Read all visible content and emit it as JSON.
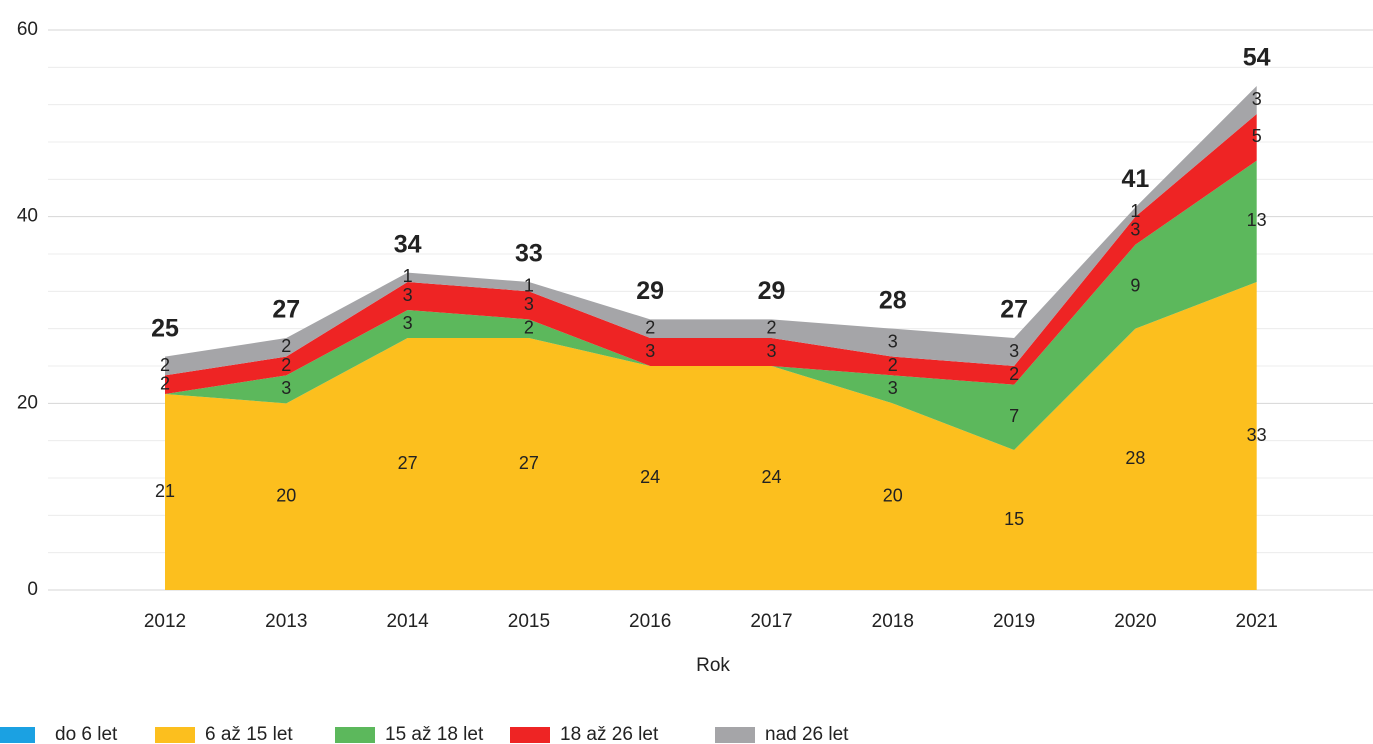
{
  "chart_data": {
    "type": "stacked_area",
    "x_label": "Rok",
    "categories": [
      "2012",
      "2013",
      "2014",
      "2015",
      "2016",
      "2017",
      "2018",
      "2019",
      "2020",
      "2021"
    ],
    "series": [
      {
        "name": "do 6 let",
        "color": "#1ba1e2",
        "values": [
          0,
          0,
          0,
          0,
          0,
          0,
          0,
          0,
          0,
          0
        ]
      },
      {
        "name": "6 až 15 let",
        "color": "#fcbf1e",
        "values": [
          21,
          20,
          27,
          27,
          24,
          24,
          20,
          15,
          28,
          33
        ]
      },
      {
        "name": "15 až 18 let",
        "color": "#5cb85c",
        "values": [
          0,
          3,
          3,
          2,
          0,
          0,
          3,
          7,
          9,
          13
        ]
      },
      {
        "name": "18 až 26 let",
        "color": "#ee2424",
        "values": [
          2,
          2,
          3,
          3,
          3,
          3,
          2,
          2,
          3,
          5
        ]
      },
      {
        "name": "nad 26 let",
        "color": "#a5a5a8",
        "values": [
          2,
          2,
          1,
          1,
          2,
          2,
          3,
          3,
          1,
          3
        ]
      }
    ],
    "totals": [
      25,
      27,
      34,
      33,
      29,
      29,
      28,
      27,
      41,
      54
    ],
    "ylim": [
      0,
      60
    ],
    "yticks": [
      0,
      20,
      40,
      60
    ],
    "yminor_ticks": [
      4,
      8,
      12,
      16,
      24,
      28,
      32,
      36,
      44,
      48,
      52,
      56
    ],
    "grid": true
  }
}
